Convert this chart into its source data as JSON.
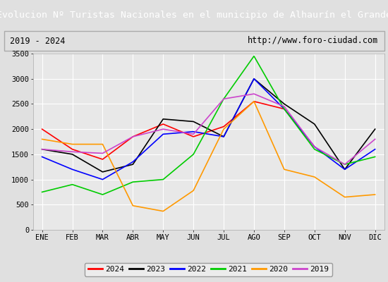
{
  "title": "Evolucion Nº Turistas Nacionales en el municipio de Alhaurín el Grande",
  "subtitle_left": "2019 - 2024",
  "subtitle_right": "http://www.foro-ciudad.com",
  "months": [
    "ENE",
    "FEB",
    "MAR",
    "ABR",
    "MAY",
    "JUN",
    "JUL",
    "AGO",
    "SEP",
    "OCT",
    "NOV",
    "DIC"
  ],
  "series": {
    "2024": {
      "color": "#ff0000",
      "data": [
        2000,
        1600,
        1400,
        1850,
        2100,
        1850,
        2050,
        2550,
        2400,
        1650,
        null,
        null
      ]
    },
    "2023": {
      "color": "#000000",
      "data": [
        1600,
        1500,
        1150,
        1300,
        2200,
        2150,
        1850,
        3000,
        2500,
        2100,
        1200,
        2000
      ]
    },
    "2022": {
      "color": "#0000ff",
      "data": [
        1450,
        1200,
        1000,
        1350,
        1900,
        1950,
        1850,
        3000,
        2400,
        1650,
        1200,
        1600
      ]
    },
    "2021": {
      "color": "#00cc00",
      "data": [
        750,
        900,
        700,
        950,
        1000,
        1500,
        2600,
        3450,
        2400,
        1600,
        1300,
        1450
      ]
    },
    "2020": {
      "color": "#ff9900",
      "data": [
        1800,
        1700,
        1700,
        480,
        370,
        780,
        2000,
        2550,
        1200,
        1050,
        650,
        700
      ]
    },
    "2019": {
      "color": "#cc44cc",
      "data": [
        1600,
        1550,
        1520,
        1850,
        2000,
        1900,
        2600,
        2700,
        2450,
        1650,
        1300,
        1800
      ]
    }
  },
  "ylim": [
    0,
    3500
  ],
  "yticks": [
    0,
    500,
    1000,
    1500,
    2000,
    2500,
    3000,
    3500
  ],
  "title_bg_color": "#4472c4",
  "title_text_color": "#ffffff",
  "plot_bg_color": "#e8e8e8",
  "outer_bg_color": "#e0e0e0",
  "grid_color": "#ffffff",
  "legend_order": [
    "2024",
    "2023",
    "2022",
    "2021",
    "2020",
    "2019"
  ],
  "figsize": [
    5.5,
    4.0
  ],
  "dpi": 100
}
